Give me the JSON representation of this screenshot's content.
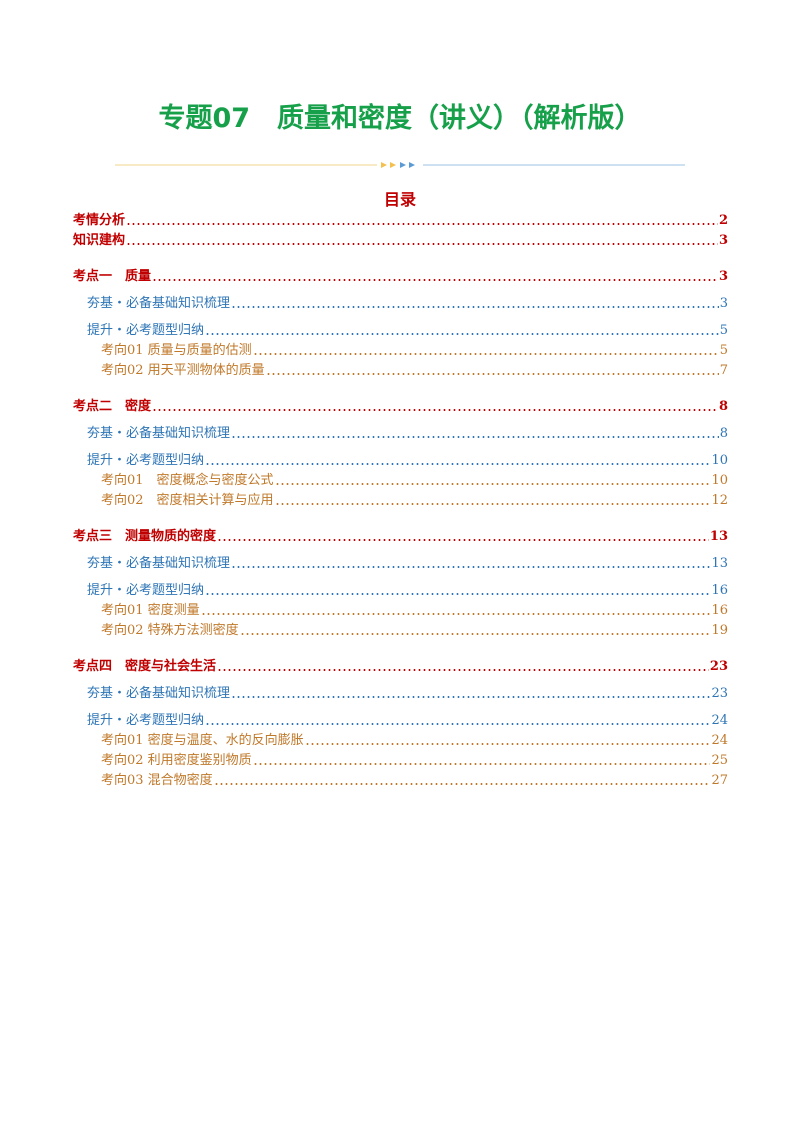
{
  "header": {
    "title": "专题07　质量和密度（讲义）（解析版）"
  },
  "toc": {
    "heading": "目录",
    "intro": [
      {
        "text": "考情分析",
        "page": "2"
      },
      {
        "text": "知识建构",
        "page": "3"
      }
    ],
    "sections": [
      {
        "text": "考点一　质量",
        "page": "3",
        "groups": [
          {
            "text": "夯基・必备基础知识梳理",
            "page": "3",
            "items": []
          },
          {
            "text": "提升・必考题型归纳",
            "page": "5",
            "items": [
              {
                "text": "考向01  质量与质量的估测",
                "page": "5"
              },
              {
                "text": "考向02  用天平测物体的质量",
                "page": "7"
              }
            ]
          }
        ]
      },
      {
        "text": "考点二　密度",
        "page": "8",
        "groups": [
          {
            "text": "夯基・必备基础知识梳理",
            "page": "8",
            "items": []
          },
          {
            "text": "提升・必考题型归纳",
            "page": "10",
            "items": [
              {
                "text": "考向01　密度概念与密度公式",
                "page": "10"
              },
              {
                "text": "考向02　密度相关计算与应用",
                "page": "12"
              }
            ]
          }
        ]
      },
      {
        "text": "考点三　测量物质的密度",
        "page": "13",
        "groups": [
          {
            "text": "夯基・必备基础知识梳理",
            "page": "13",
            "items": []
          },
          {
            "text": "提升・必考题型归纳",
            "page": "16",
            "items": [
              {
                "text": "考向01  密度测量",
                "page": "16"
              },
              {
                "text": "考向02  特殊方法测密度",
                "page": "19"
              }
            ]
          }
        ]
      },
      {
        "text": "考点四　密度与社会生活",
        "page": "23",
        "groups": [
          {
            "text": "夯基・必备基础知识梳理",
            "page": "23",
            "items": []
          },
          {
            "text": "提升・必考题型归纳",
            "page": "24",
            "items": [
              {
                "text": "考向01  密度与温度、水的反向膨胀",
                "page": "24"
              },
              {
                "text": "考向02  利用密度鉴别物质",
                "page": "25"
              },
              {
                "text": "考向03  混合物密度",
                "page": "27"
              }
            ]
          }
        ]
      }
    ]
  }
}
